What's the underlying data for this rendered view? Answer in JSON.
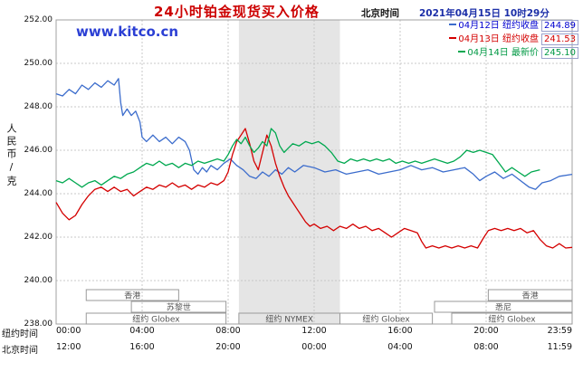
{
  "header": {
    "title": "24小时铂金现货买入价格",
    "timezone_label": "北京时间",
    "datetime": "2021年04月15日 10时29分"
  },
  "watermark": "www.kitco.cn",
  "legend": [
    {
      "date": "04月12日",
      "label": "纽约收盘",
      "value": "244.89",
      "text_color": "#0000d0"
    },
    {
      "date": "04月13日",
      "label": "纽约收盘",
      "value": "241.53",
      "text_color": "#d40000"
    },
    {
      "date": "04月14日",
      "label": "最新价",
      "value": "245.10",
      "text_color": "#009944"
    }
  ],
  "y_axis": {
    "unit_label": "人民币/克",
    "ticks": [
      "252.00",
      "250.00",
      "248.00",
      "246.00",
      "244.00",
      "242.00",
      "240.00",
      "238.00"
    ]
  },
  "x_axis": {
    "ny_label": "纽约时间",
    "bj_label": "北京时间",
    "ny_ticks": [
      "00:00",
      "04:00",
      "08:00",
      "12:00",
      "16:00",
      "20:00",
      "23:59"
    ],
    "bj_ticks": [
      "12:00",
      "16:00",
      "20:00",
      "00:00",
      "04:00",
      "08:00",
      "11:59"
    ]
  },
  "chart_data": {
    "type": "line",
    "title": "24小时铂金现货买入价格",
    "ylabel": "人民币/克",
    "ylim": [
      238,
      252
    ],
    "x_hours_ny": [
      0,
      24
    ],
    "grid": true,
    "grid_color": "#c8c8c8",
    "highlight_band_hours": [
      8.5,
      13.2
    ],
    "highlight_band_color": "#e5e5e5",
    "series": [
      {
        "id": "apr12-ny-close",
        "name": "04月12日 纽约收盘",
        "close": 244.89,
        "color": "#3b6ccc",
        "points": [
          [
            0,
            248.6
          ],
          [
            0.3,
            248.5
          ],
          [
            0.6,
            248.8
          ],
          [
            0.9,
            248.6
          ],
          [
            1.2,
            249.0
          ],
          [
            1.5,
            248.8
          ],
          [
            1.8,
            249.1
          ],
          [
            2.1,
            248.9
          ],
          [
            2.4,
            249.2
          ],
          [
            2.7,
            249.0
          ],
          [
            2.9,
            249.3
          ],
          [
            3.0,
            248.2
          ],
          [
            3.1,
            247.6
          ],
          [
            3.3,
            247.9
          ],
          [
            3.5,
            247.6
          ],
          [
            3.7,
            247.8
          ],
          [
            3.9,
            247.3
          ],
          [
            4.0,
            246.6
          ],
          [
            4.2,
            246.4
          ],
          [
            4.5,
            246.7
          ],
          [
            4.8,
            246.4
          ],
          [
            5.1,
            246.6
          ],
          [
            5.4,
            246.3
          ],
          [
            5.7,
            246.6
          ],
          [
            6.0,
            246.4
          ],
          [
            6.2,
            246.0
          ],
          [
            6.4,
            245.1
          ],
          [
            6.6,
            244.9
          ],
          [
            6.8,
            245.2
          ],
          [
            7.0,
            245.0
          ],
          [
            7.2,
            245.3
          ],
          [
            7.5,
            245.1
          ],
          [
            7.8,
            245.4
          ],
          [
            8.1,
            245.6
          ],
          [
            8.4,
            245.3
          ],
          [
            8.7,
            245.1
          ],
          [
            9.0,
            244.8
          ],
          [
            9.3,
            244.7
          ],
          [
            9.6,
            245.0
          ],
          [
            9.9,
            244.8
          ],
          [
            10.2,
            245.1
          ],
          [
            10.5,
            244.9
          ],
          [
            10.8,
            245.2
          ],
          [
            11.1,
            245.0
          ],
          [
            11.5,
            245.3
          ],
          [
            12.0,
            245.2
          ],
          [
            12.5,
            245.0
          ],
          [
            13.0,
            245.1
          ],
          [
            13.5,
            244.9
          ],
          [
            14.0,
            245.0
          ],
          [
            14.5,
            245.1
          ],
          [
            15.0,
            244.9
          ],
          [
            15.5,
            245.0
          ],
          [
            16.0,
            245.1
          ],
          [
            16.5,
            245.3
          ],
          [
            17.0,
            245.1
          ],
          [
            17.5,
            245.2
          ],
          [
            18.0,
            245.0
          ],
          [
            18.5,
            245.1
          ],
          [
            19.0,
            245.2
          ],
          [
            19.4,
            244.9
          ],
          [
            19.7,
            244.6
          ],
          [
            20.0,
            244.8
          ],
          [
            20.4,
            245.0
          ],
          [
            20.8,
            244.7
          ],
          [
            21.2,
            244.9
          ],
          [
            21.6,
            244.6
          ],
          [
            22.0,
            244.3
          ],
          [
            22.3,
            244.2
          ],
          [
            22.6,
            244.5
          ],
          [
            23.0,
            244.6
          ],
          [
            23.4,
            244.8
          ],
          [
            24,
            244.89
          ]
        ]
      },
      {
        "id": "apr13-ny-close",
        "name": "04月13日 纽约收盘",
        "close": 241.53,
        "color": "#d40000",
        "points": [
          [
            0,
            243.6
          ],
          [
            0.3,
            243.1
          ],
          [
            0.6,
            242.8
          ],
          [
            0.9,
            243.0
          ],
          [
            1.2,
            243.5
          ],
          [
            1.5,
            243.9
          ],
          [
            1.8,
            244.2
          ],
          [
            2.1,
            244.3
          ],
          [
            2.4,
            244.1
          ],
          [
            2.7,
            244.3
          ],
          [
            3.0,
            244.1
          ],
          [
            3.3,
            244.2
          ],
          [
            3.6,
            243.9
          ],
          [
            3.9,
            244.1
          ],
          [
            4.2,
            244.3
          ],
          [
            4.5,
            244.2
          ],
          [
            4.8,
            244.4
          ],
          [
            5.1,
            244.3
          ],
          [
            5.4,
            244.5
          ],
          [
            5.7,
            244.3
          ],
          [
            6.0,
            244.4
          ],
          [
            6.3,
            244.2
          ],
          [
            6.6,
            244.4
          ],
          [
            6.9,
            244.3
          ],
          [
            7.2,
            244.5
          ],
          [
            7.5,
            244.4
          ],
          [
            7.8,
            244.6
          ],
          [
            8.0,
            245.0
          ],
          [
            8.2,
            245.8
          ],
          [
            8.4,
            246.4
          ],
          [
            8.6,
            246.7
          ],
          [
            8.8,
            247.0
          ],
          [
            9.0,
            246.3
          ],
          [
            9.2,
            245.5
          ],
          [
            9.4,
            245.1
          ],
          [
            9.6,
            245.9
          ],
          [
            9.8,
            246.7
          ],
          [
            10.0,
            246.2
          ],
          [
            10.2,
            245.4
          ],
          [
            10.4,
            244.8
          ],
          [
            10.6,
            244.3
          ],
          [
            10.8,
            243.9
          ],
          [
            11.0,
            243.6
          ],
          [
            11.2,
            243.3
          ],
          [
            11.4,
            243.0
          ],
          [
            11.6,
            242.7
          ],
          [
            11.8,
            242.5
          ],
          [
            12.0,
            242.6
          ],
          [
            12.3,
            242.4
          ],
          [
            12.6,
            242.5
          ],
          [
            12.9,
            242.3
          ],
          [
            13.2,
            242.5
          ],
          [
            13.5,
            242.4
          ],
          [
            13.8,
            242.6
          ],
          [
            14.1,
            242.4
          ],
          [
            14.4,
            242.5
          ],
          [
            14.7,
            242.3
          ],
          [
            15.0,
            242.4
          ],
          [
            15.3,
            242.2
          ],
          [
            15.6,
            242.0
          ],
          [
            15.9,
            242.2
          ],
          [
            16.2,
            242.4
          ],
          [
            16.5,
            242.3
          ],
          [
            16.8,
            242.2
          ],
          [
            17.0,
            241.8
          ],
          [
            17.2,
            241.5
          ],
          [
            17.5,
            241.6
          ],
          [
            17.8,
            241.5
          ],
          [
            18.1,
            241.6
          ],
          [
            18.4,
            241.5
          ],
          [
            18.7,
            241.6
          ],
          [
            19.0,
            241.5
          ],
          [
            19.3,
            241.6
          ],
          [
            19.6,
            241.5
          ],
          [
            19.9,
            242.0
          ],
          [
            20.1,
            242.3
          ],
          [
            20.4,
            242.4
          ],
          [
            20.7,
            242.3
          ],
          [
            21.0,
            242.4
          ],
          [
            21.3,
            242.3
          ],
          [
            21.6,
            242.4
          ],
          [
            21.9,
            242.2
          ],
          [
            22.2,
            242.3
          ],
          [
            22.5,
            241.9
          ],
          [
            22.8,
            241.6
          ],
          [
            23.1,
            241.5
          ],
          [
            23.4,
            241.7
          ],
          [
            23.7,
            241.5
          ],
          [
            24,
            241.53
          ]
        ]
      },
      {
        "id": "apr14-latest",
        "name": "04月14日 最新价",
        "close": 245.1,
        "color": "#00a84f",
        "points": [
          [
            0,
            244.6
          ],
          [
            0.3,
            244.5
          ],
          [
            0.6,
            244.7
          ],
          [
            0.9,
            244.5
          ],
          [
            1.2,
            244.3
          ],
          [
            1.5,
            244.5
          ],
          [
            1.8,
            244.6
          ],
          [
            2.1,
            244.4
          ],
          [
            2.4,
            244.6
          ],
          [
            2.7,
            244.8
          ],
          [
            3.0,
            244.7
          ],
          [
            3.3,
            244.9
          ],
          [
            3.6,
            245.0
          ],
          [
            3.9,
            245.2
          ],
          [
            4.2,
            245.4
          ],
          [
            4.5,
            245.3
          ],
          [
            4.8,
            245.5
          ],
          [
            5.1,
            245.3
          ],
          [
            5.4,
            245.4
          ],
          [
            5.7,
            245.2
          ],
          [
            6.0,
            245.4
          ],
          [
            6.3,
            245.3
          ],
          [
            6.6,
            245.5
          ],
          [
            6.9,
            245.4
          ],
          [
            7.2,
            245.5
          ],
          [
            7.5,
            245.6
          ],
          [
            7.8,
            245.5
          ],
          [
            8.0,
            245.8
          ],
          [
            8.2,
            246.2
          ],
          [
            8.4,
            246.5
          ],
          [
            8.6,
            246.3
          ],
          [
            8.8,
            246.6
          ],
          [
            9.0,
            246.2
          ],
          [
            9.2,
            245.9
          ],
          [
            9.4,
            246.1
          ],
          [
            9.6,
            246.4
          ],
          [
            9.8,
            246.2
          ],
          [
            10.0,
            247.0
          ],
          [
            10.2,
            246.8
          ],
          [
            10.4,
            246.2
          ],
          [
            10.6,
            245.9
          ],
          [
            10.8,
            246.1
          ],
          [
            11.0,
            246.3
          ],
          [
            11.3,
            246.2
          ],
          [
            11.6,
            246.4
          ],
          [
            11.9,
            246.3
          ],
          [
            12.2,
            246.4
          ],
          [
            12.5,
            246.2
          ],
          [
            12.8,
            245.9
          ],
          [
            13.1,
            245.5
          ],
          [
            13.4,
            245.4
          ],
          [
            13.7,
            245.6
          ],
          [
            14.0,
            245.5
          ],
          [
            14.3,
            245.6
          ],
          [
            14.6,
            245.5
          ],
          [
            14.9,
            245.6
          ],
          [
            15.2,
            245.5
          ],
          [
            15.5,
            245.6
          ],
          [
            15.8,
            245.4
          ],
          [
            16.1,
            245.5
          ],
          [
            16.4,
            245.4
          ],
          [
            16.7,
            245.5
          ],
          [
            17.0,
            245.4
          ],
          [
            17.3,
            245.5
          ],
          [
            17.6,
            245.6
          ],
          [
            17.9,
            245.5
          ],
          [
            18.2,
            245.4
          ],
          [
            18.5,
            245.5
          ],
          [
            18.8,
            245.7
          ],
          [
            19.1,
            246.0
          ],
          [
            19.4,
            245.9
          ],
          [
            19.7,
            246.0
          ],
          [
            20.0,
            245.9
          ],
          [
            20.3,
            245.8
          ],
          [
            20.6,
            245.4
          ],
          [
            20.9,
            245.0
          ],
          [
            21.2,
            245.2
          ],
          [
            21.5,
            245.0
          ],
          [
            21.8,
            244.8
          ],
          [
            22.1,
            245.0
          ],
          [
            22.5,
            245.1
          ]
        ]
      }
    ],
    "sessions": [
      {
        "label": "香港",
        "row": 0,
        "t": [
          1.4,
          5.7
        ]
      },
      {
        "label": "香港",
        "row": 0,
        "t": [
          20.1,
          24
        ]
      },
      {
        "label": "苏黎世",
        "row": 1,
        "t": [
          3.5,
          7.9
        ]
      },
      {
        "label": "悉尼",
        "row": 1,
        "t": [
          17.6,
          24
        ]
      },
      {
        "label": "纽约 Globex",
        "row": 2,
        "t": [
          1.4,
          7.9
        ]
      },
      {
        "label": "纽约 NYMEX",
        "row": 2,
        "t": [
          8.5,
          13.2
        ]
      },
      {
        "label": "纽约 Globex",
        "row": 2,
        "t": [
          13.2,
          17.5
        ]
      },
      {
        "label": "纽约 Globex",
        "row": 2,
        "t": [
          18.4,
          24
        ]
      }
    ]
  }
}
